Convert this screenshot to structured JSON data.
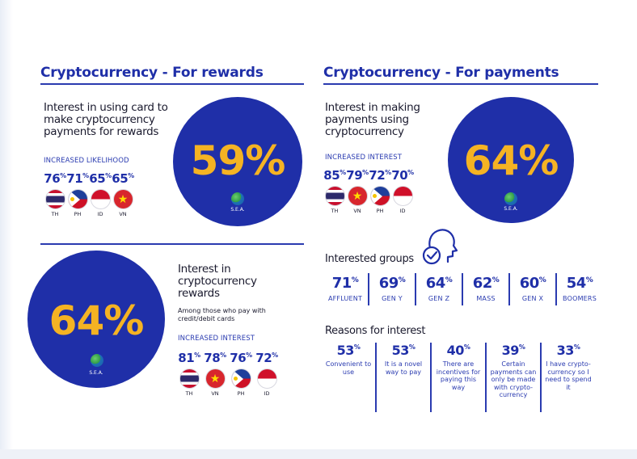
{
  "rewards": {
    "title": "Cryptocurrency - For rewards",
    "blurb": "Interest in using card to make cryptocurrency payments for rewards",
    "label": "INCREASED LIKELIHOOD",
    "big_value": "59%",
    "region": "S.E.A.",
    "stats": [
      {
        "value": "76",
        "code": "TH"
      },
      {
        "value": "71",
        "code": "PH"
      },
      {
        "value": "65",
        "code": "ID"
      },
      {
        "value": "65",
        "code": "VN"
      }
    ]
  },
  "payments": {
    "title": "Cryptocurrency - For payments",
    "blurb": "Interest in making payments using cryptocurrency",
    "label": "INCREASED INTEREST",
    "big_value": "64%",
    "region": "S.E.A.",
    "stats": [
      {
        "value": "85",
        "code": "TH"
      },
      {
        "value": "79",
        "code": "VN"
      },
      {
        "value": "72",
        "code": "PH"
      },
      {
        "value": "70",
        "code": "ID"
      }
    ]
  },
  "rewards_interest": {
    "blurb": "Interest in cryptocurrency rewards",
    "note": "Among those who pay with credit/debit cards",
    "label": "INCREASED INTEREST",
    "big_value": "64%",
    "region": "S.E.A.",
    "stats": [
      {
        "value": "81",
        "code": "TH"
      },
      {
        "value": "78",
        "code": "VN"
      },
      {
        "value": "76",
        "code": "PH"
      },
      {
        "value": "72",
        "code": "ID"
      }
    ]
  },
  "groups": {
    "heading": "Interested groups",
    "items": [
      {
        "value": "71",
        "label": "AFFLUENT"
      },
      {
        "value": "69",
        "label": "GEN Y"
      },
      {
        "value": "64",
        "label": "GEN Z"
      },
      {
        "value": "62",
        "label": "MASS"
      },
      {
        "value": "60",
        "label": "GEN X"
      },
      {
        "value": "54",
        "label": "BOOMERS"
      }
    ]
  },
  "reasons": {
    "heading": "Reasons for interest",
    "items": [
      {
        "value": "53",
        "text": "Convenient to use"
      },
      {
        "value": "53",
        "text": "It is a novel way to pay"
      },
      {
        "value": "40",
        "text": "There are incentives for paying this way"
      },
      {
        "value": "39",
        "text": "Certain payments can only be made with crypto-currency"
      },
      {
        "value": "33",
        "text": "I have crypto-currency so I need to spend it"
      }
    ]
  },
  "percent_sign": "%",
  "icons": {
    "globe": "globe-icon",
    "head": "head-check-icon"
  },
  "colors": {
    "brand_blue": "#1f2fa8",
    "accent_gold": "#f5b323"
  }
}
